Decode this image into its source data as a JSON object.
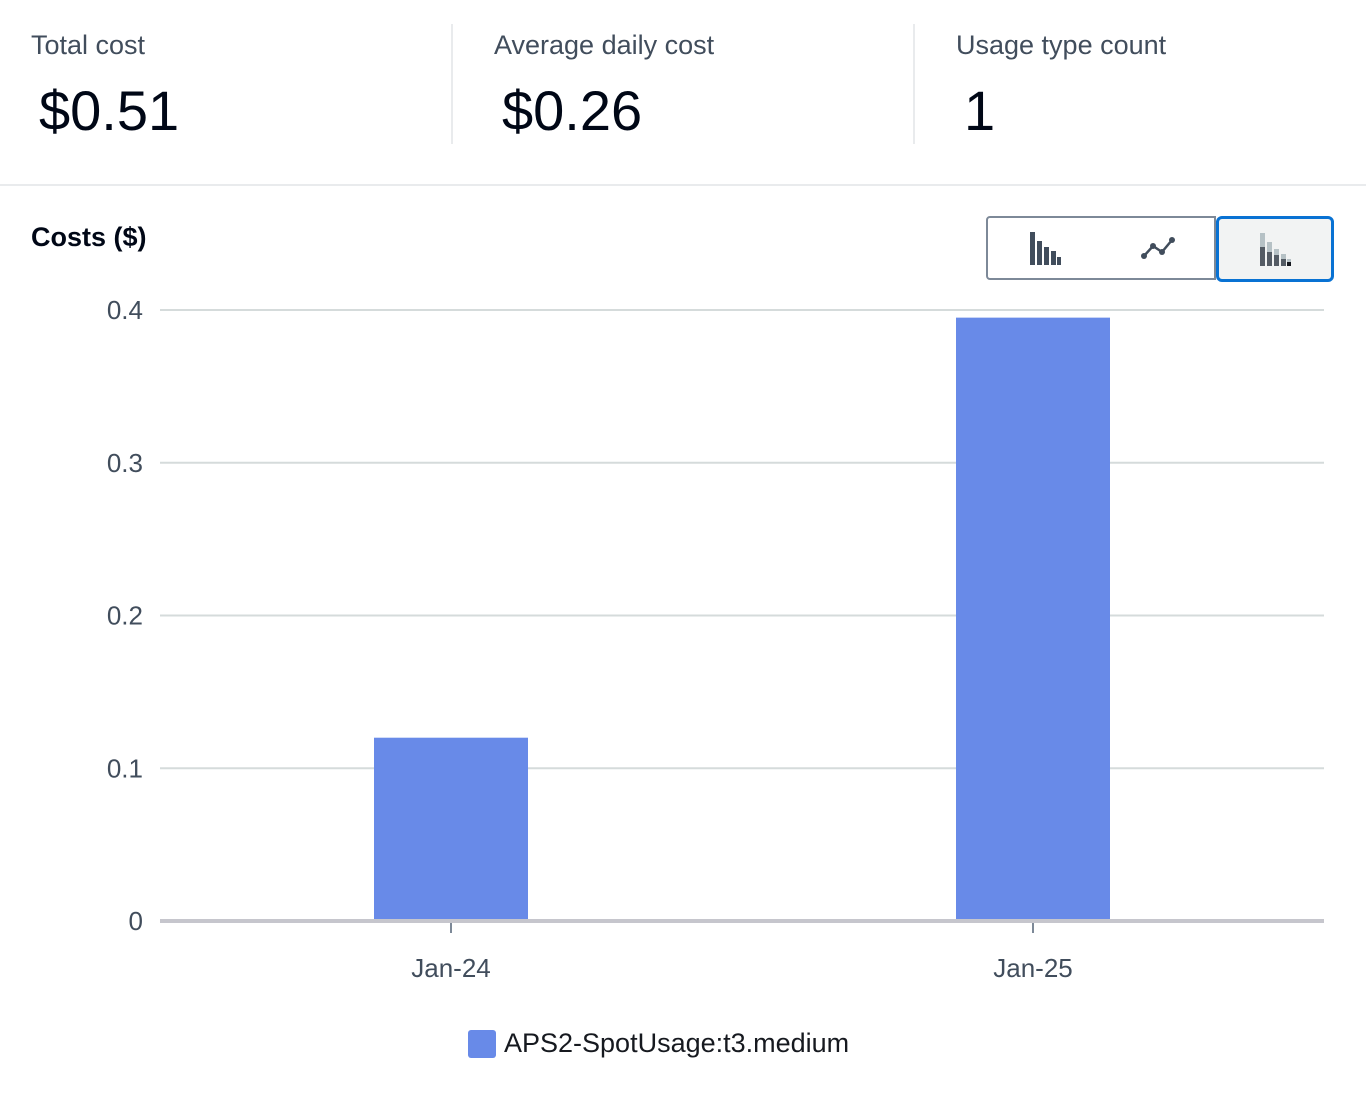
{
  "summary": {
    "total_cost": {
      "label": "Total cost",
      "value": "$0.51"
    },
    "average_daily_cost": {
      "label": "Average daily cost",
      "value": "$0.26"
    },
    "usage_type_count": {
      "label": "Usage type count",
      "value": "1"
    }
  },
  "chart_toggle": {
    "options": [
      {
        "icon": "bar-chart-icon",
        "selected": false
      },
      {
        "icon": "line-chart-icon",
        "selected": false
      },
      {
        "icon": "stacked-bar-chart-icon",
        "selected": true
      }
    ]
  },
  "colors": {
    "series": "#688ae8",
    "grid": "#d5dbdb",
    "axis": "#c6c6cd",
    "accent": "#0972d3"
  },
  "chart_data": {
    "type": "bar",
    "title": "Costs ($)",
    "xlabel": "",
    "ylabel": "",
    "categories": [
      "Jan-24",
      "Jan-25"
    ],
    "series": [
      {
        "name": "APS2-SpotUsage:t3.medium",
        "values": [
          0.12,
          0.395
        ]
      }
    ],
    "ylim": [
      0,
      0.4
    ],
    "yticks": [
      "0",
      "0.1",
      "0.2",
      "0.3",
      "0.4"
    ],
    "grid": true,
    "legend": "bottom-center"
  }
}
